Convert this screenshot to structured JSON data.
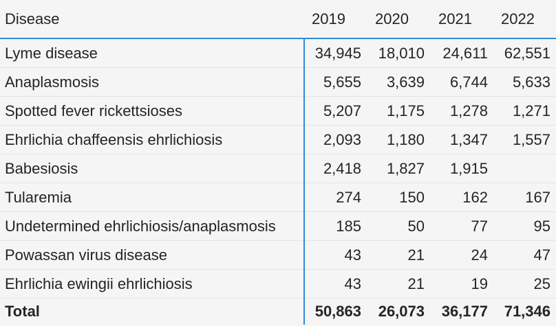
{
  "table": {
    "header": [
      "Disease",
      "2019",
      "2020",
      "2021",
      "2022"
    ],
    "rows": [
      [
        "Lyme disease",
        "34,945",
        "18,010",
        "24,611",
        "62,551"
      ],
      [
        "Anaplasmosis",
        "5,655",
        "3,639",
        "6,744",
        "5,633"
      ],
      [
        "Spotted fever rickettsioses",
        "5,207",
        "1,175",
        "1,278",
        "1,271"
      ],
      [
        "Ehrlichia chaffeensis ehrlichiosis",
        "2,093",
        "1,180",
        "1,347",
        "1,557"
      ],
      [
        "Babesiosis",
        "2,418",
        "1,827",
        "1,915",
        null
      ],
      [
        "Tularemia",
        "274",
        "150",
        "162",
        "167"
      ],
      [
        "Undetermined ehrlichiosis/anaplasmosis",
        "185",
        "50",
        "77",
        "95"
      ],
      [
        "Powassan virus disease",
        "43",
        "21",
        "24",
        "47"
      ],
      [
        "Ehrlichia ewingii ehrlichiosis",
        "43",
        "21",
        "19",
        "25"
      ]
    ],
    "total": [
      "Total",
      "50,863",
      "26,073",
      "36,177",
      "71,346"
    ]
  }
}
